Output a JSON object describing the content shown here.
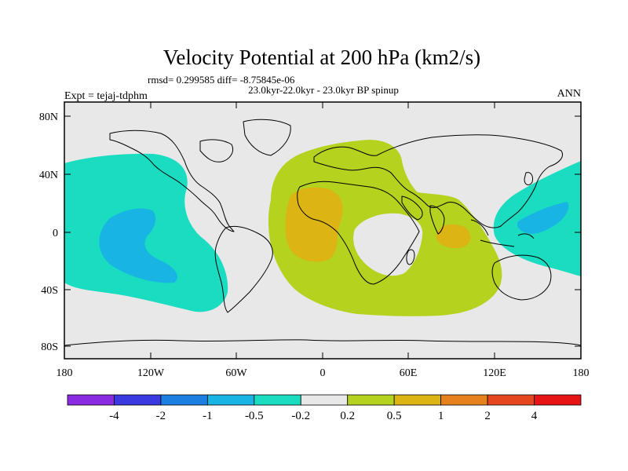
{
  "title": "Velocity Potential at 200 hPa (km2/s)",
  "stats": "rmsd= 0.299585 diff= -8.75845e-06",
  "period": "23.0kyr-22.0kyr - 23.0kyr BP spinup",
  "experiment": "Expt = tejaj-tdphm",
  "season": "ANN",
  "lat_ticks": [
    "80N",
    "40N",
    "0",
    "40S",
    "80S"
  ],
  "lon_ticks": [
    "180",
    "120W",
    "60W",
    "0",
    "60E",
    "120E",
    "180"
  ],
  "colorbar": {
    "labels": [
      "-4",
      "-2",
      "-1",
      "-0.5",
      "-0.2",
      "0.2",
      "0.5",
      "1",
      "2",
      "4"
    ],
    "colors": [
      "#8a2be2",
      "#3a3ae0",
      "#1a7fe0",
      "#18b4e4",
      "#19dcc0",
      "#e8e8e8",
      "#b4d21e",
      "#dcb414",
      "#e6821e",
      "#e6461e",
      "#e61414"
    ]
  },
  "colors": {
    "map_bg": "#e8e8e8",
    "neg_02_05": "#19dcc0",
    "neg_05_1": "#18b4e4",
    "pos_02_05": "#b4d21e",
    "pos_05_1": "#dcb414"
  }
}
